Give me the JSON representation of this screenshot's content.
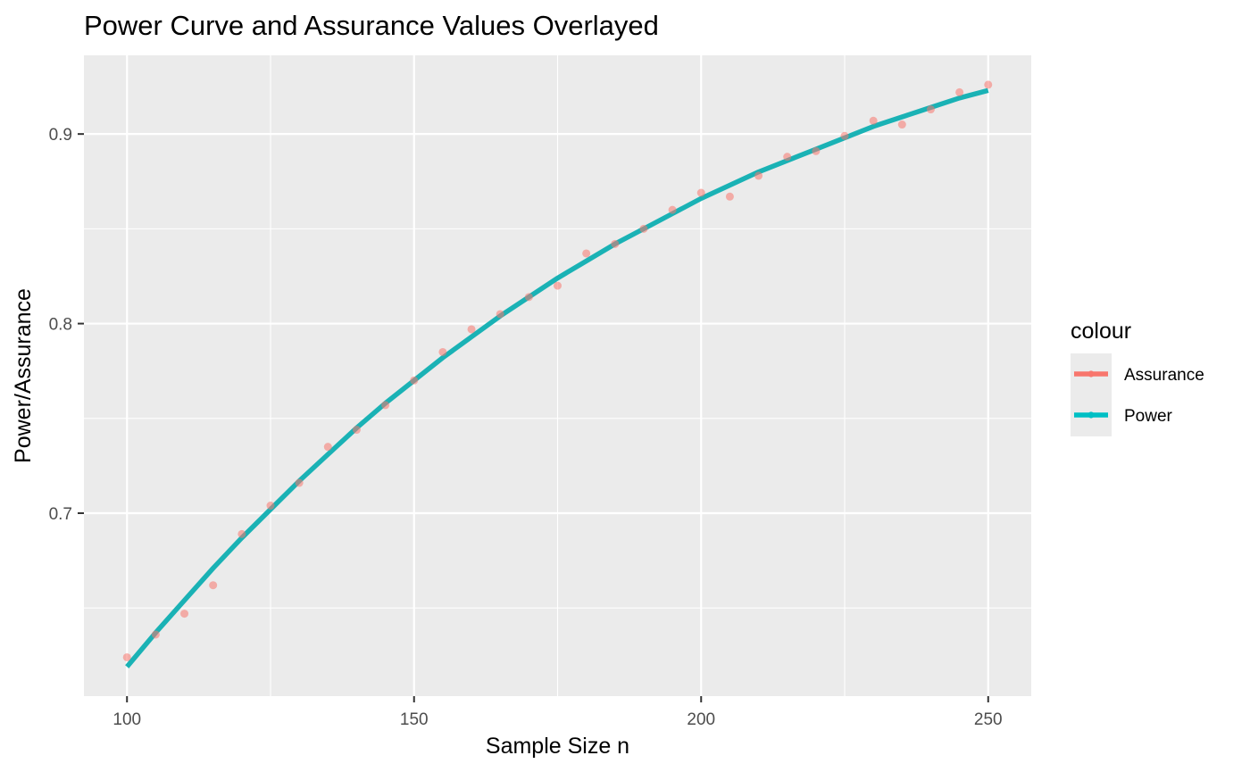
{
  "chart_data": {
    "type": "line",
    "title": "Power Curve and Assurance Values Overlayed",
    "xlabel": "Sample Size n",
    "ylabel": "Power/Assurance",
    "xlim": [
      92.5,
      257.5
    ],
    "ylim": [
      0.6035,
      0.9415
    ],
    "x_ticks": [
      100,
      150,
      200,
      250
    ],
    "x_tick_labels": [
      "100",
      "150",
      "200",
      "250"
    ],
    "x_minor_ticks": [
      125,
      175,
      225
    ],
    "y_ticks": [
      0.7,
      0.8,
      0.9
    ],
    "y_tick_labels": [
      "0.7",
      "0.8",
      "0.9"
    ],
    "y_minor_ticks": [
      0.65,
      0.75,
      0.85
    ],
    "grid": true,
    "legend": {
      "title": "colour",
      "position": "right",
      "entries": [
        {
          "label": "Assurance",
          "color": "#F8766D"
        },
        {
          "label": "Power",
          "color": "#00BFC4"
        }
      ]
    },
    "series": [
      {
        "name": "Power",
        "kind": "line",
        "color": "#1AB2B5",
        "x": [
          100,
          105,
          110,
          115,
          120,
          125,
          130,
          135,
          140,
          145,
          150,
          155,
          160,
          165,
          170,
          175,
          180,
          185,
          190,
          195,
          200,
          205,
          210,
          215,
          220,
          225,
          230,
          235,
          240,
          245,
          250
        ],
        "y": [
          0.619,
          0.637,
          0.654,
          0.671,
          0.687,
          0.702,
          0.717,
          0.731,
          0.745,
          0.758,
          0.77,
          0.782,
          0.793,
          0.804,
          0.814,
          0.824,
          0.833,
          0.842,
          0.85,
          0.858,
          0.866,
          0.873,
          0.88,
          0.886,
          0.892,
          0.898,
          0.904,
          0.909,
          0.914,
          0.919,
          0.923
        ]
      },
      {
        "name": "Assurance",
        "kind": "scatter",
        "color": "#F8766D",
        "x": [
          100,
          105,
          110,
          115,
          120,
          125,
          130,
          135,
          140,
          145,
          150,
          155,
          160,
          165,
          170,
          175,
          180,
          185,
          190,
          195,
          200,
          205,
          210,
          215,
          220,
          225,
          230,
          235,
          240,
          245,
          250
        ],
        "y": [
          0.624,
          0.636,
          0.647,
          0.662,
          0.689,
          0.704,
          0.716,
          0.735,
          0.744,
          0.757,
          0.77,
          0.785,
          0.797,
          0.805,
          0.814,
          0.82,
          0.837,
          0.842,
          0.85,
          0.86,
          0.869,
          0.867,
          0.878,
          0.888,
          0.891,
          0.899,
          0.907,
          0.905,
          0.913,
          0.922,
          0.926
        ]
      }
    ]
  }
}
